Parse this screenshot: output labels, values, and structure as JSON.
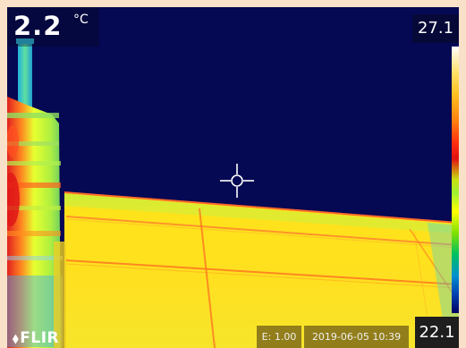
{
  "spot_temperature": {
    "value": "2.2",
    "unit": "°C"
  },
  "scale": {
    "max_label": "27.1",
    "min_label": "22.1",
    "palette": [
      "#ffffff",
      "#ffe066",
      "#ff8010",
      "#e01010",
      "#c8e010",
      "#ffff00",
      "#00c060",
      "#0090d0",
      "#000060"
    ]
  },
  "status_bar": {
    "emissivity": "E: 1.00",
    "timestamp": "2019-06-05  10:39"
  },
  "brand": {
    "logo_text": "FLIR"
  },
  "icons": {
    "crosshair": "spot-meter-crosshair-icon",
    "logo": "flir-logo-icon"
  },
  "colors": {
    "sky": "#050852",
    "roof_warm": "#ffe41a",
    "roof_edge": "#ff5a1e",
    "cool_band": "#00c8ff"
  }
}
